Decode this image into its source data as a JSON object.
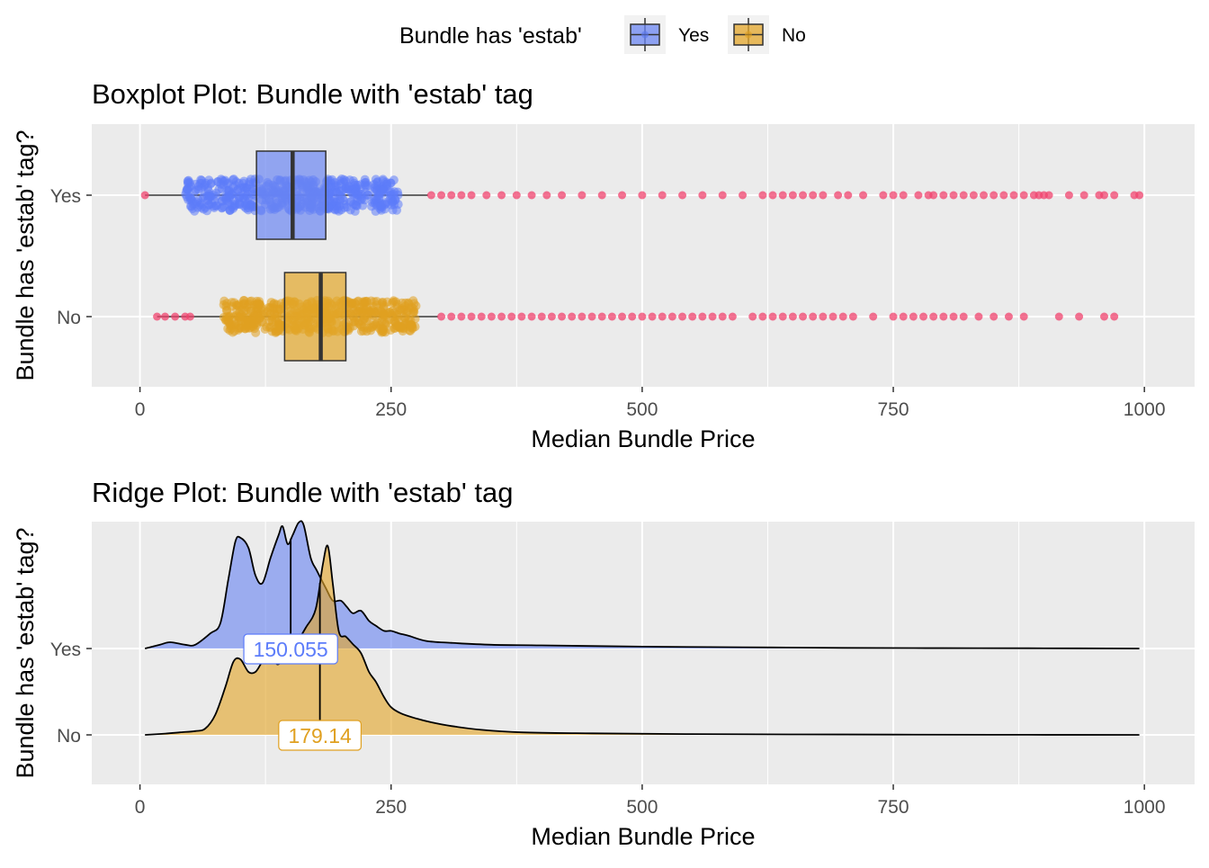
{
  "legend": {
    "title": "Bundle has 'estab'",
    "entries": [
      {
        "label": "Yes",
        "fill": "#6b86f2",
        "point": "#5a78f0"
      },
      {
        "label": "No",
        "fill": "#e3a62a",
        "point": "#e0a020"
      }
    ],
    "placement": "top"
  },
  "colors": {
    "panel_bg": "#ebebeb",
    "grid": "#ffffff",
    "outlier": "#f0436e",
    "yes": "#5c7cfa",
    "no": "#e0a020"
  },
  "chart_data": [
    {
      "type": "boxplot",
      "title": "Boxplot Plot: Bundle with 'estab' tag",
      "xlabel": "Median Bundle Price",
      "ylabel": "Bundle has 'estab' tag?",
      "xlim": [
        -48,
        1050
      ],
      "xticks": [
        0,
        250,
        500,
        750,
        1000
      ],
      "xtick_labels": [
        "0",
        "250",
        "500",
        "750",
        "1000"
      ],
      "categories": [
        "Yes",
        "No"
      ],
      "grid": true,
      "series": [
        {
          "category": "Yes",
          "min": 5,
          "q1": 116,
          "median": 152,
          "q3": 185,
          "whisker_high": 287,
          "jitter_range": [
            45,
            258
          ],
          "outliers": [
            5,
            290,
            300,
            310,
            320,
            330,
            345,
            360,
            375,
            390,
            405,
            420,
            440,
            460,
            480,
            500,
            520,
            540,
            560,
            580,
            600,
            620,
            630,
            640,
            650,
            660,
            670,
            680,
            695,
            705,
            720,
            740,
            750,
            760,
            775,
            785,
            790,
            800,
            810,
            820,
            830,
            840,
            850,
            860,
            870,
            880,
            890,
            895,
            900,
            905,
            925,
            940,
            955,
            960,
            970,
            990,
            995
          ]
        },
        {
          "category": "No",
          "min": 17,
          "q1": 144,
          "median": 180,
          "q3": 205,
          "whisker_high": 297,
          "jitter_range": [
            83,
            275
          ],
          "outliers": [
            17,
            25,
            35,
            45,
            50,
            300,
            310,
            320,
            330,
            340,
            350,
            360,
            370,
            380,
            390,
            400,
            410,
            420,
            430,
            440,
            450,
            460,
            470,
            480,
            490,
            500,
            510,
            520,
            530,
            540,
            550,
            560,
            570,
            580,
            590,
            610,
            620,
            630,
            640,
            650,
            660,
            670,
            680,
            690,
            700,
            710,
            730,
            750,
            760,
            770,
            780,
            790,
            800,
            810,
            820,
            835,
            850,
            865,
            880,
            915,
            935,
            960,
            970
          ]
        }
      ]
    },
    {
      "type": "ridge",
      "title": "Ridge Plot: Bundle with 'estab' tag",
      "xlabel": "Median Bundle Price",
      "ylabel": "Bundle has 'estab' tag?",
      "xlim": [
        -48,
        1050
      ],
      "xticks": [
        0,
        250,
        500,
        750,
        1000
      ],
      "xtick_labels": [
        "0",
        "250",
        "500",
        "750",
        "1000"
      ],
      "categories": [
        "Yes",
        "No"
      ],
      "grid": true,
      "series": [
        {
          "category": "Yes",
          "median": 150.055,
          "median_label": "150.055",
          "density": [
            [
              5,
              0
            ],
            [
              20,
              0.03
            ],
            [
              30,
              0.05
            ],
            [
              45,
              0.03
            ],
            [
              55,
              0.03
            ],
            [
              70,
              0.12
            ],
            [
              80,
              0.2
            ],
            [
              88,
              0.55
            ],
            [
              95,
              0.85
            ],
            [
              100,
              0.88
            ],
            [
              108,
              0.8
            ],
            [
              115,
              0.58
            ],
            [
              122,
              0.52
            ],
            [
              130,
              0.72
            ],
            [
              138,
              0.9
            ],
            [
              142,
              0.97
            ],
            [
              147,
              0.83
            ],
            [
              152,
              0.9
            ],
            [
              158,
              1.0
            ],
            [
              163,
              0.98
            ],
            [
              170,
              0.72
            ],
            [
              176,
              0.62
            ],
            [
              185,
              0.48
            ],
            [
              192,
              0.38
            ],
            [
              200,
              0.38
            ],
            [
              206,
              0.33
            ],
            [
              212,
              0.28
            ],
            [
              220,
              0.3
            ],
            [
              228,
              0.22
            ],
            [
              235,
              0.18
            ],
            [
              243,
              0.14
            ],
            [
              250,
              0.14
            ],
            [
              258,
              0.12
            ],
            [
              268,
              0.1
            ],
            [
              285,
              0.06
            ],
            [
              310,
              0.045
            ],
            [
              350,
              0.03
            ],
            [
              400,
              0.025
            ],
            [
              500,
              0.015
            ],
            [
              600,
              0.01
            ],
            [
              700,
              0.005
            ],
            [
              800,
              0.003
            ],
            [
              900,
              0.002
            ],
            [
              995,
              0
            ]
          ]
        },
        {
          "category": "No",
          "median": 179.14,
          "median_label": "179.14",
          "density": [
            [
              5,
              0
            ],
            [
              25,
              0.01
            ],
            [
              40,
              0.02
            ],
            [
              55,
              0.03
            ],
            [
              65,
              0.05
            ],
            [
              75,
              0.16
            ],
            [
              85,
              0.38
            ],
            [
              93,
              0.58
            ],
            [
              100,
              0.6
            ],
            [
              108,
              0.5
            ],
            [
              115,
              0.5
            ],
            [
              122,
              0.58
            ],
            [
              130,
              0.62
            ],
            [
              137,
              0.56
            ],
            [
              145,
              0.62
            ],
            [
              155,
              0.72
            ],
            [
              165,
              0.85
            ],
            [
              175,
              1.0
            ],
            [
              182,
              1.35
            ],
            [
              187,
              1.5
            ],
            [
              192,
              1.2
            ],
            [
              198,
              0.82
            ],
            [
              205,
              0.78
            ],
            [
              212,
              0.72
            ],
            [
              220,
              0.65
            ],
            [
              228,
              0.5
            ],
            [
              235,
              0.42
            ],
            [
              243,
              0.3
            ],
            [
              250,
              0.22
            ],
            [
              260,
              0.17
            ],
            [
              275,
              0.13
            ],
            [
              290,
              0.1
            ],
            [
              310,
              0.07
            ],
            [
              340,
              0.04
            ],
            [
              380,
              0.02
            ],
            [
              450,
              0.012
            ],
            [
              550,
              0.006
            ],
            [
              700,
              0.003
            ],
            [
              850,
              0.001
            ],
            [
              995,
              0
            ]
          ]
        }
      ]
    }
  ]
}
